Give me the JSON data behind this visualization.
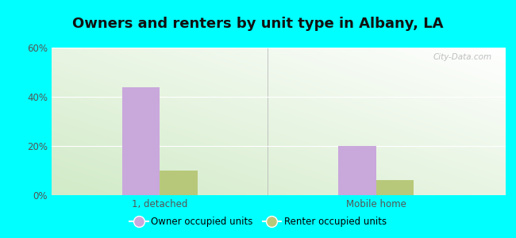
{
  "title": "Owners and renters by unit type in Albany, LA",
  "categories": [
    "1, detached",
    "Mobile home"
  ],
  "owner_values": [
    44,
    20
  ],
  "renter_values": [
    10,
    6
  ],
  "owner_color": "#c9a8dc",
  "renter_color": "#b8c87a",
  "ylim": [
    0,
    60
  ],
  "yticks": [
    0,
    20,
    40,
    60
  ],
  "yticklabels": [
    "0%",
    "20%",
    "40%",
    "60%"
  ],
  "bar_width": 0.35,
  "group_positions": [
    1.0,
    3.0
  ],
  "background_color": "#00ffff",
  "title_fontsize": 13,
  "legend_labels": [
    "Owner occupied units",
    "Renter occupied units"
  ],
  "watermark": "City-Data.com"
}
